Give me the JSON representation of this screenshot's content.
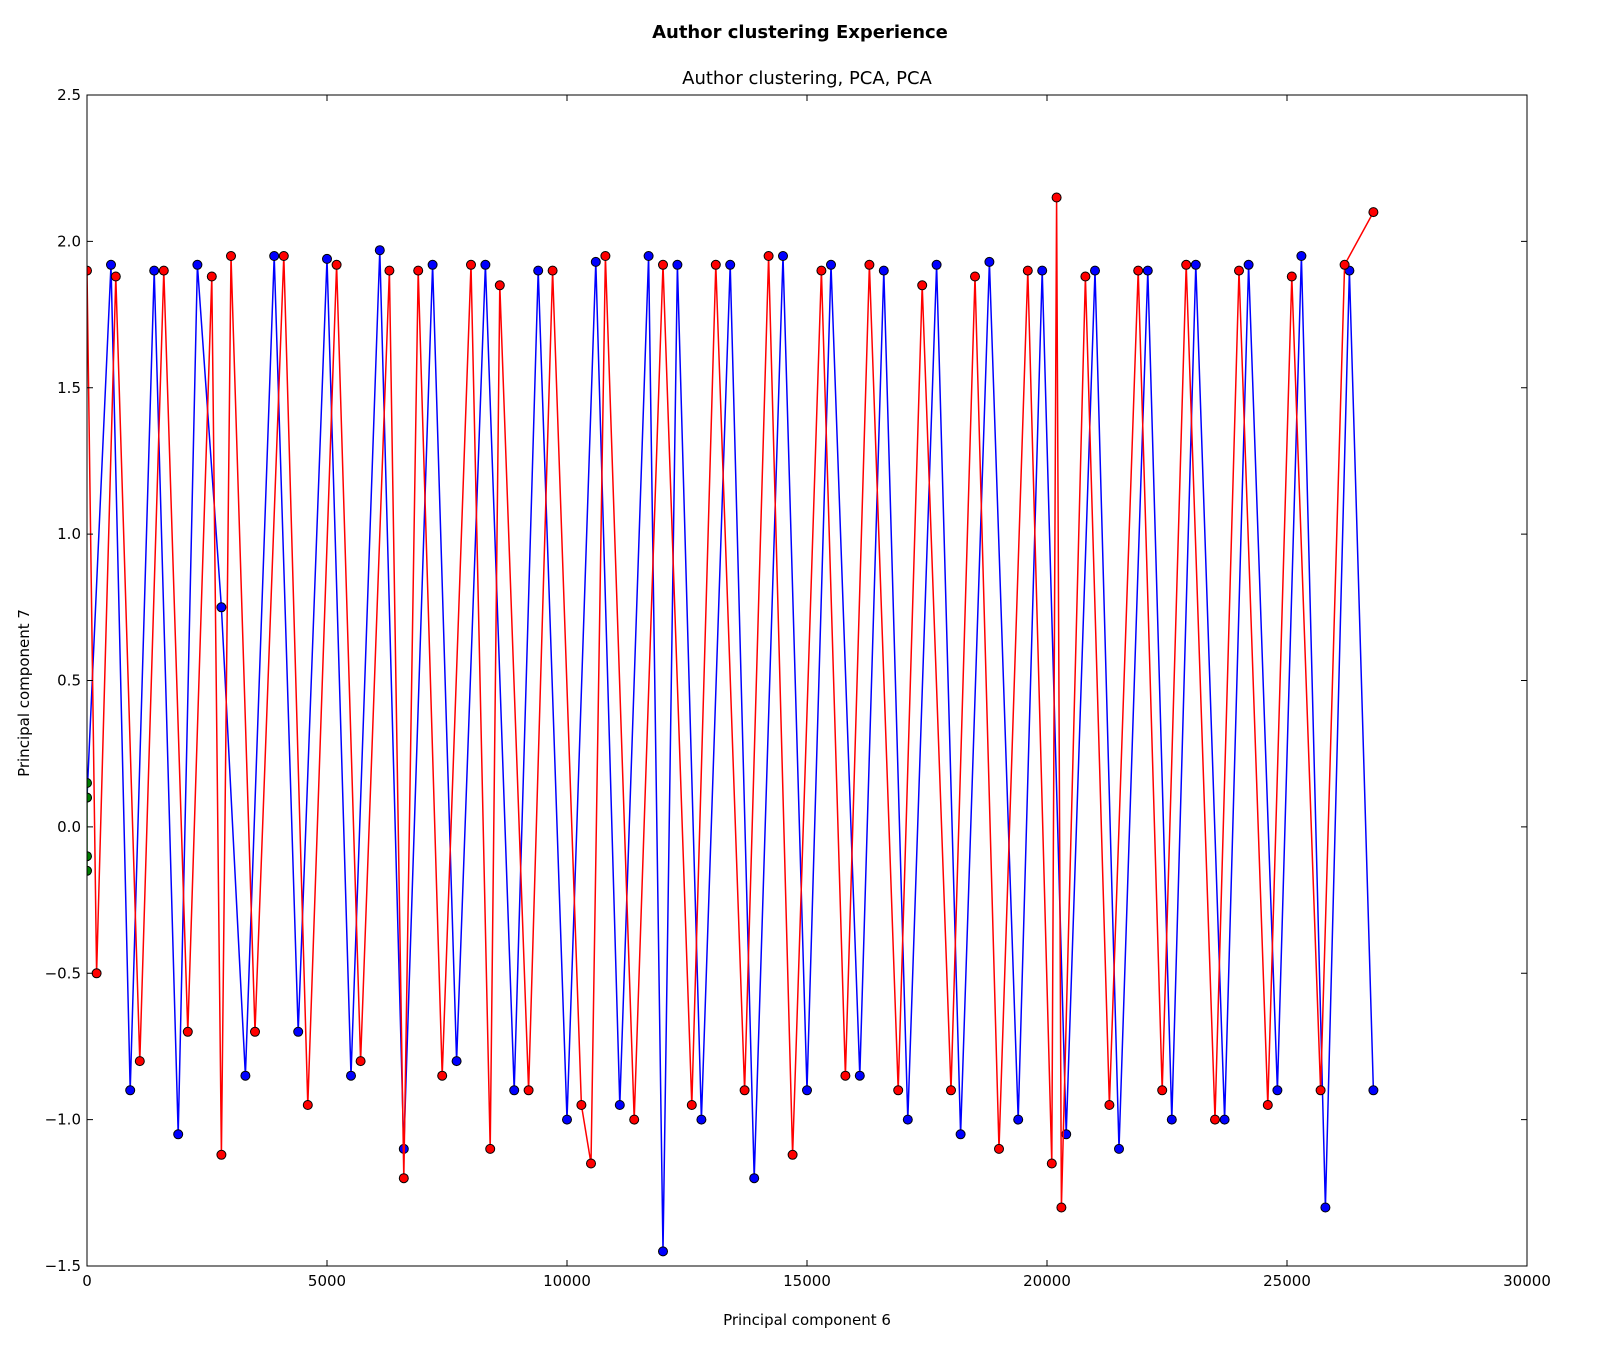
{
  "figure": {
    "suptitle": "Author clustering Experience"
  },
  "chart_data": {
    "type": "line",
    "title": "Author clustering, PCA, PCA",
    "xlabel": "Principal component 6",
    "ylabel": "Principal component 7",
    "xlim": [
      0,
      30000
    ],
    "ylim": [
      -1.5,
      2.5
    ],
    "xticks": [
      0,
      5000,
      10000,
      15000,
      20000,
      25000,
      30000
    ],
    "xtick_labels": [
      "0",
      "5000",
      "10000",
      "15000",
      "20000",
      "25000",
      "30000"
    ],
    "yticks": [
      -1.5,
      -1.0,
      -0.5,
      0.0,
      0.5,
      1.0,
      1.5,
      2.0,
      2.5
    ],
    "ytick_labels": [
      "−1.5",
      "−1.0",
      "−0.5",
      "0.0",
      "0.5",
      "1.0",
      "1.5",
      "2.0",
      "2.5"
    ],
    "marker": "circle",
    "grid": false,
    "legend": false,
    "series": [
      {
        "color": "#0000ff",
        "x": [
          0,
          500,
          900,
          1400,
          1900,
          2300,
          2800,
          3300,
          3900,
          4400,
          5000,
          5500,
          6100,
          6600,
          7200,
          7700,
          8300,
          8900,
          9400,
          10000,
          10600,
          11100,
          11700,
          12000,
          12300,
          12800,
          13400,
          13900,
          14500,
          15000,
          15500,
          16100,
          16600,
          17100,
          17700,
          18200,
          18800,
          19400,
          19900,
          20400,
          21000,
          21500,
          22100,
          22600,
          23100,
          23700,
          24200,
          24800,
          25300,
          25800,
          26300,
          26800
        ],
        "y": [
          0.1,
          1.92,
          -0.9,
          1.9,
          -1.05,
          1.92,
          0.75,
          -0.85,
          1.95,
          -0.7,
          1.94,
          -0.85,
          1.97,
          -1.1,
          1.92,
          -0.8,
          1.92,
          -0.9,
          1.9,
          -1.0,
          1.93,
          -0.95,
          1.95,
          -1.45,
          1.92,
          -1.0,
          1.92,
          -1.2,
          1.95,
          -0.9,
          1.92,
          -0.85,
          1.9,
          -1.0,
          1.92,
          -1.05,
          1.93,
          -1.0,
          1.9,
          -1.05,
          1.9,
          -1.1,
          1.9,
          -1.0,
          1.92,
          -1.0,
          1.92,
          -0.9,
          1.95,
          -1.3,
          1.9,
          -0.9
        ]
      },
      {
        "color": "#ff0000",
        "x": [
          0,
          200,
          600,
          1100,
          1600,
          2100,
          2600,
          2800,
          3000,
          3500,
          4100,
          4600,
          5200,
          5700,
          6300,
          6600,
          6900,
          7400,
          8000,
          8400,
          8600,
          9200,
          9700,
          10300,
          10500,
          10800,
          11400,
          12000,
          12600,
          13100,
          13700,
          14200,
          14700,
          15300,
          15800,
          16300,
          16900,
          17400,
          18000,
          18500,
          19000,
          19600,
          20100,
          20200,
          20300,
          20800,
          21300,
          21900,
          22400,
          22900,
          23500,
          24000,
          24600,
          25100,
          25700,
          26200,
          26800
        ],
        "y": [
          1.9,
          -0.5,
          1.88,
          -0.8,
          1.9,
          -0.7,
          1.88,
          -1.12,
          1.95,
          -0.7,
          1.95,
          -0.95,
          1.92,
          -0.8,
          1.9,
          -1.2,
          1.9,
          -0.85,
          1.92,
          -1.1,
          1.85,
          -0.9,
          1.9,
          -0.95,
          -1.15,
          1.95,
          -1.0,
          1.92,
          -0.95,
          1.92,
          -0.9,
          1.95,
          -1.12,
          1.9,
          -0.85,
          1.92,
          -0.9,
          1.85,
          -0.9,
          1.88,
          -1.1,
          1.9,
          -1.15,
          2.15,
          -1.3,
          1.88,
          -0.95,
          1.9,
          -0.9,
          1.92,
          -1.0,
          1.9,
          -0.95,
          1.88,
          -0.9,
          1.92,
          2.1
        ]
      },
      {
        "color": "#008000",
        "x": [
          0,
          0,
          0,
          0
        ],
        "y": [
          0.1,
          0.15,
          -0.1,
          -0.15
        ]
      }
    ]
  }
}
